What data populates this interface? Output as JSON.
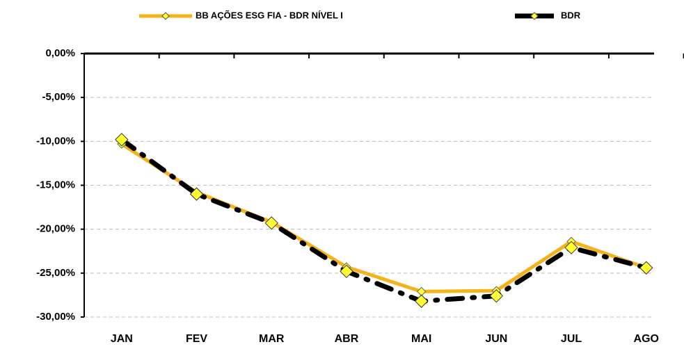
{
  "chart_data": {
    "type": "line",
    "categories": [
      "JAN",
      "FEV",
      "MAR",
      "ABR",
      "MAI",
      "JUN",
      "JUL",
      "AGO"
    ],
    "series": [
      {
        "name": "BB AÇÕES ESG FIA - BDR NÍVEL I",
        "color": "#f5b21a",
        "values": [
          -10.3,
          -15.8,
          -19.2,
          -24.3,
          -27.1,
          -27.0,
          -21.4,
          -24.4
        ]
      },
      {
        "name": "BDR",
        "color": "#000000",
        "values": [
          -9.8,
          -16.0,
          -19.3,
          -24.8,
          -28.2,
          -27.6,
          -22.1,
          -24.4
        ]
      }
    ],
    "ylim": [
      -30,
      0
    ],
    "yticks": [
      {
        "value": 0,
        "label": "0,00%"
      },
      {
        "value": -5,
        "label": "-5,00%"
      },
      {
        "value": -10,
        "label": "-10,00%"
      },
      {
        "value": -15,
        "label": "-15,00%"
      },
      {
        "value": -20,
        "label": "-20,00%"
      },
      {
        "value": -25,
        "label": "-25,00%"
      },
      {
        "value": -30,
        "label": "-30,00%"
      }
    ],
    "grid": true,
    "legend": "top"
  }
}
